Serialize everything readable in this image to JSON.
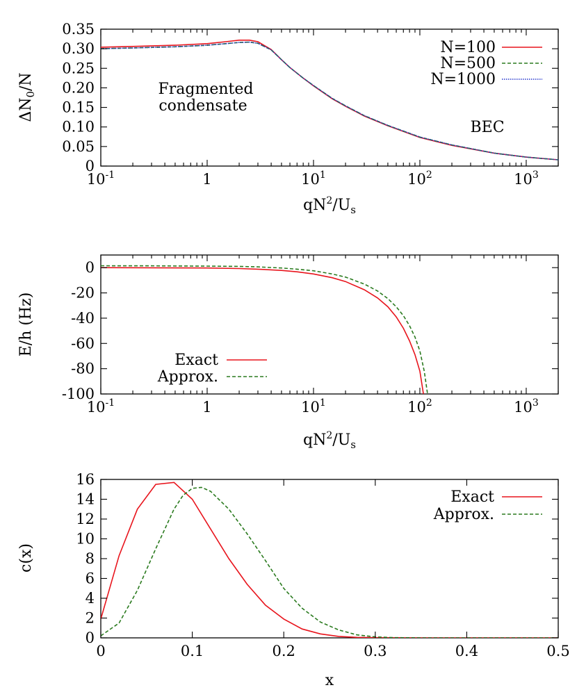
{
  "chart_data": [
    {
      "type": "line",
      "xscale": "log",
      "xlim": [
        0.1,
        2000
      ],
      "ylim": [
        0,
        0.35
      ],
      "xlabel_parts": [
        "qN",
        "2",
        "/U",
        "s"
      ],
      "ylabel_parts": [
        "ΔN",
        "0",
        "/N"
      ],
      "xticks": [
        {
          "value": 0.1,
          "base": "10",
          "exp": "-1"
        },
        {
          "value": 1,
          "base": "1",
          "exp": ""
        },
        {
          "value": 10,
          "base": "10",
          "exp": "1"
        },
        {
          "value": 100,
          "base": "10",
          "exp": "2"
        },
        {
          "value": 1000,
          "base": "10",
          "exp": "3"
        }
      ],
      "yticks": [
        {
          "value": 0,
          "label": "0"
        },
        {
          "value": 0.05,
          "label": "0.05"
        },
        {
          "value": 0.1,
          "label": "0.10"
        },
        {
          "value": 0.15,
          "label": "0.15"
        },
        {
          "value": 0.2,
          "label": "0.20"
        },
        {
          "value": 0.25,
          "label": "0.25"
        },
        {
          "value": 0.3,
          "label": "0.30"
        },
        {
          "value": 0.35,
          "label": "0.35"
        }
      ],
      "annotations": {
        "fragmented": [
          "Fragmented",
          "condensate"
        ],
        "bec": "BEC"
      },
      "legend": "top-right",
      "series": [
        {
          "name": "N=100",
          "color": "#e8141c",
          "dash": "solid",
          "x": [
            0.1,
            0.2,
            0.5,
            1,
            1.5,
            2,
            2.5,
            3,
            4,
            5,
            6,
            8,
            10,
            15,
            20,
            30,
            50,
            100,
            200,
            500,
            1000,
            2000
          ],
          "y": [
            0.304,
            0.306,
            0.309,
            0.313,
            0.318,
            0.322,
            0.322,
            0.318,
            0.298,
            0.272,
            0.252,
            0.225,
            0.205,
            0.172,
            0.153,
            0.128,
            0.103,
            0.073,
            0.053,
            0.033,
            0.023,
            0.016
          ]
        },
        {
          "name": "N=500",
          "color": "#2a7a1e",
          "dash": "5,3",
          "x": [
            0.1,
            0.2,
            0.5,
            1,
            1.5,
            2,
            2.5,
            3,
            4,
            5,
            6,
            8,
            10,
            15,
            20,
            30,
            50,
            100,
            200,
            500,
            1000,
            2000
          ],
          "y": [
            0.3,
            0.302,
            0.305,
            0.309,
            0.313,
            0.316,
            0.317,
            0.314,
            0.297,
            0.272,
            0.252,
            0.225,
            0.206,
            0.173,
            0.154,
            0.129,
            0.104,
            0.074,
            0.054,
            0.033,
            0.023,
            0.016
          ]
        },
        {
          "name": "N=1000",
          "color": "#2233cc",
          "dash": "1.5,1.5",
          "x": [
            0.1,
            0.2,
            0.5,
            1,
            1.5,
            2,
            2.5,
            3,
            4,
            5,
            6,
            8,
            10,
            15,
            20,
            30,
            50,
            100,
            200,
            500,
            1000,
            2000
          ],
          "y": [
            0.3,
            0.302,
            0.305,
            0.309,
            0.313,
            0.316,
            0.317,
            0.314,
            0.297,
            0.272,
            0.252,
            0.225,
            0.206,
            0.173,
            0.154,
            0.129,
            0.104,
            0.074,
            0.054,
            0.033,
            0.023,
            0.016
          ]
        }
      ]
    },
    {
      "type": "line",
      "xscale": "log",
      "xlim": [
        0.1,
        2000
      ],
      "ylim": [
        -100,
        10
      ],
      "xlabel_parts": [
        "qN",
        "2",
        "/U",
        "s"
      ],
      "ylabel": "E/h (Hz)",
      "xticks": [
        {
          "value": 0.1,
          "base": "10",
          "exp": "-1"
        },
        {
          "value": 1,
          "base": "1",
          "exp": ""
        },
        {
          "value": 10,
          "base": "10",
          "exp": "1"
        },
        {
          "value": 100,
          "base": "10",
          "exp": "2"
        },
        {
          "value": 1000,
          "base": "10",
          "exp": "3"
        }
      ],
      "yticks": [
        {
          "value": -100,
          "label": "-100"
        },
        {
          "value": -80,
          "label": "-80"
        },
        {
          "value": -60,
          "label": "-60"
        },
        {
          "value": -40,
          "label": "-40"
        },
        {
          "value": -20,
          "label": "-20"
        },
        {
          "value": 0,
          "label": "0"
        }
      ],
      "legend": "bottom-left",
      "series": [
        {
          "name": "Exact",
          "color": "#e8141c",
          "dash": "solid",
          "x": [
            0.1,
            0.3,
            1,
            2,
            3,
            5,
            7,
            10,
            15,
            20,
            30,
            40,
            50,
            60,
            70,
            80,
            90,
            100,
            108
          ],
          "y": [
            0,
            -0.1,
            -0.3,
            -0.7,
            -1.2,
            -2.2,
            -3.3,
            -5,
            -8,
            -11,
            -17.5,
            -24,
            -31,
            -39,
            -48,
            -58,
            -69,
            -82,
            -100
          ]
        },
        {
          "name": "Approx.",
          "color": "#2a7a1e",
          "dash": "5,3",
          "x": [
            0.1,
            0.3,
            1,
            2,
            3,
            5,
            7,
            10,
            15,
            20,
            30,
            40,
            50,
            60,
            70,
            80,
            90,
            100,
            110,
            118
          ],
          "y": [
            1.5,
            1.4,
            1.2,
            1,
            0.6,
            -0.3,
            -1.2,
            -2.5,
            -5,
            -7.5,
            -13,
            -18.5,
            -24.5,
            -31,
            -38,
            -46,
            -55,
            -66,
            -82,
            -100
          ]
        }
      ]
    },
    {
      "type": "line",
      "xscale": "linear",
      "xlim": [
        0,
        0.5
      ],
      "ylim": [
        0,
        16
      ],
      "xlabel": "x",
      "ylabel": "c(x)",
      "xticks": [
        {
          "value": 0,
          "label": "0"
        },
        {
          "value": 0.1,
          "label": "0.1"
        },
        {
          "value": 0.2,
          "label": "0.2"
        },
        {
          "value": 0.3,
          "label": "0.3"
        },
        {
          "value": 0.4,
          "label": "0.4"
        },
        {
          "value": 0.5,
          "label": "0.5"
        }
      ],
      "yticks": [
        {
          "value": 0,
          "label": "0"
        },
        {
          "value": 2,
          "label": "2"
        },
        {
          "value": 4,
          "label": "4"
        },
        {
          "value": 6,
          "label": "6"
        },
        {
          "value": 8,
          "label": "8"
        },
        {
          "value": 10,
          "label": "10"
        },
        {
          "value": 12,
          "label": "12"
        },
        {
          "value": 14,
          "label": "14"
        },
        {
          "value": 16,
          "label": "16"
        }
      ],
      "legend": "top-right",
      "series": [
        {
          "name": "Exact",
          "color": "#e8141c",
          "dash": "solid",
          "x": [
            0,
            0.02,
            0.04,
            0.06,
            0.08,
            0.1,
            0.12,
            0.14,
            0.16,
            0.18,
            0.2,
            0.22,
            0.24,
            0.26,
            0.28,
            0.3,
            0.35,
            0.4,
            0.5
          ],
          "y": [
            1.9,
            8.3,
            13.0,
            15.5,
            15.7,
            14.0,
            11.0,
            8.0,
            5.4,
            3.3,
            1.9,
            0.9,
            0.4,
            0.15,
            0.05,
            0.02,
            0,
            0,
            0
          ]
        },
        {
          "name": "Approx.",
          "color": "#2a7a1e",
          "dash": "5,3",
          "x": [
            0,
            0.02,
            0.04,
            0.06,
            0.08,
            0.09,
            0.1,
            0.11,
            0.12,
            0.14,
            0.16,
            0.18,
            0.2,
            0.22,
            0.24,
            0.26,
            0.28,
            0.3,
            0.32,
            0.35,
            0.4,
            0.5
          ],
          "y": [
            0.2,
            1.5,
            4.8,
            9.0,
            13.0,
            14.4,
            15.1,
            15.2,
            14.8,
            13.0,
            10.5,
            7.8,
            5.0,
            3.0,
            1.6,
            0.8,
            0.3,
            0.1,
            0.03,
            0,
            0,
            0
          ]
        }
      ]
    }
  ]
}
